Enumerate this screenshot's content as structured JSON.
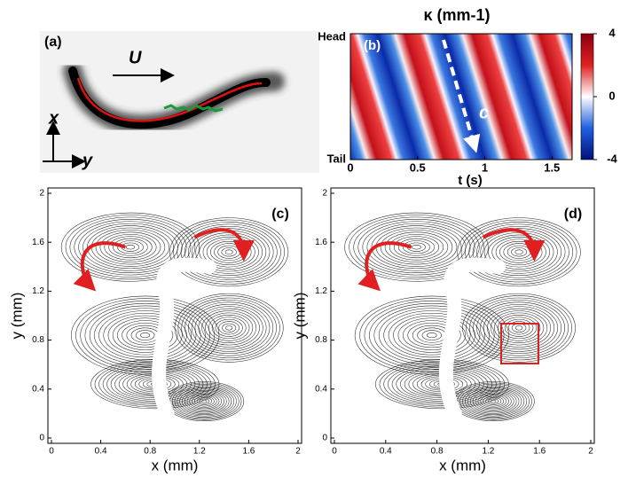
{
  "chart_data": [
    {
      "type": "image",
      "panel_label": "(a)",
      "velocity_label": "U",
      "axis_x_label": "x",
      "axis_y_label": "y"
    },
    {
      "type": "heatmap",
      "panel_label": "(b)",
      "title": "κ (mm-1)",
      "top_label": "Head",
      "bottom_label": "Tail",
      "wave_label": "c",
      "x_label": "t (s)",
      "xlim": [
        0,
        1.65
      ],
      "xticks": [
        0,
        0.5,
        1,
        1.5
      ],
      "colorbar_lim": [
        -4,
        4
      ],
      "colorbar_ticks": [
        4,
        0,
        -4
      ]
    },
    {
      "type": "streamline",
      "panel_label": "(c)",
      "x_label": "x (mm)",
      "y_label": "y (mm)",
      "xlim": [
        0,
        2
      ],
      "ylim": [
        0,
        2
      ],
      "xticks": [
        0,
        0.4,
        0.8,
        1.2,
        1.6,
        2
      ],
      "yticks": [
        0,
        0.4,
        0.8,
        1.2,
        1.6,
        2
      ]
    },
    {
      "type": "streamline",
      "panel_label": "(d)",
      "x_label": "x (mm)",
      "y_label": "y (mm)",
      "xlim": [
        0,
        2
      ],
      "ylim": [
        0,
        2
      ],
      "xticks": [
        0,
        0.4,
        0.8,
        1.2,
        1.6,
        2
      ],
      "yticks": [
        0,
        0.4,
        0.8,
        1.2,
        1.6,
        2
      ]
    }
  ]
}
